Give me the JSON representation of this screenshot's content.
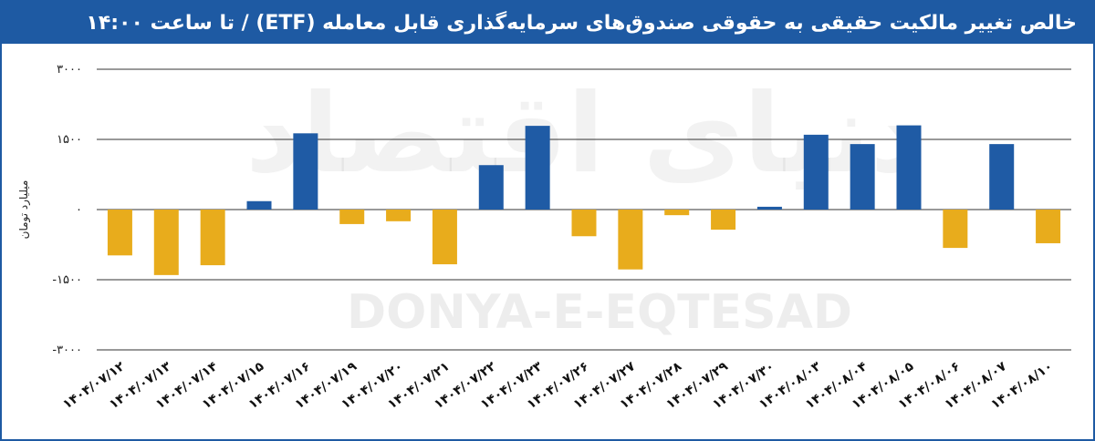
{
  "header": {
    "title": "خالص تغییر مالکیت حقیقی به حقوقی صندوق‌های سرمایه‌گذاری قابل معامله (ETF) / تا ساعت ۱۴:۰۰"
  },
  "watermark": {
    "text": "DONYA-E-EQTESAD",
    "script_text": "دنیای اقتصاد"
  },
  "colors": {
    "frame": "#1e5aa3",
    "positive": "#1f5ba5",
    "negative": "#e8ac1c",
    "grid": "#333333"
  },
  "chart_data": {
    "type": "bar",
    "title": "خالص تغییر مالکیت حقیقی به حقوقی صندوق‌های سرمایه‌گذاری قابل معامله (ETF) / تا ساعت ۱۴:۰۰",
    "ylabel": "میلیارد تومان",
    "xlabel": "",
    "ylim": [
      -3000,
      3000
    ],
    "yticks": [
      3000,
      1500,
      0,
      -1500,
      -3000
    ],
    "ytick_labels": [
      "۳۰۰۰",
      "۱۵۰۰",
      "۰",
      "-۱۵۰۰",
      "-۳۰۰۰"
    ],
    "grid": true,
    "categories": [
      "۱۴۰۴/۰۷/۱۲",
      "۱۴۰۴/۰۷/۱۳",
      "۱۴۰۴/۰۷/۱۴",
      "۱۴۰۴/۰۷/۱۵",
      "۱۴۰۴/۰۷/۱۶",
      "۱۴۰۴/۰۷/۱۹",
      "۱۴۰۴/۰۷/۲۰",
      "۱۴۰۴/۰۷/۲۱",
      "۱۴۰۴/۰۷/۲۲",
      "۱۴۰۴/۰۷/۲۳",
      "۱۴۰۴/۰۷/۲۶",
      "۱۴۰۴/۰۷/۲۷",
      "۱۴۰۴/۰۷/۲۸",
      "۱۴۰۴/۰۷/۲۹",
      "۱۴۰۴/۰۷/۳۰",
      "۱۴۰۴/۰۸/۰۳",
      "۱۴۰۴/۰۸/۰۴",
      "۱۴۰۴/۰۸/۰۵",
      "۱۴۰۴/۰۸/۰۶",
      "۱۴۰۴/۰۸/۰۷",
      "۱۴۰۴/۰۸/۱۰"
    ],
    "values": [
      -980,
      -1400,
      -1190,
      180,
      1630,
      -310,
      -250,
      -1170,
      950,
      1790,
      -570,
      -1280,
      -120,
      -430,
      60,
      1600,
      1400,
      1800,
      -820,
      1400,
      -720
    ]
  }
}
